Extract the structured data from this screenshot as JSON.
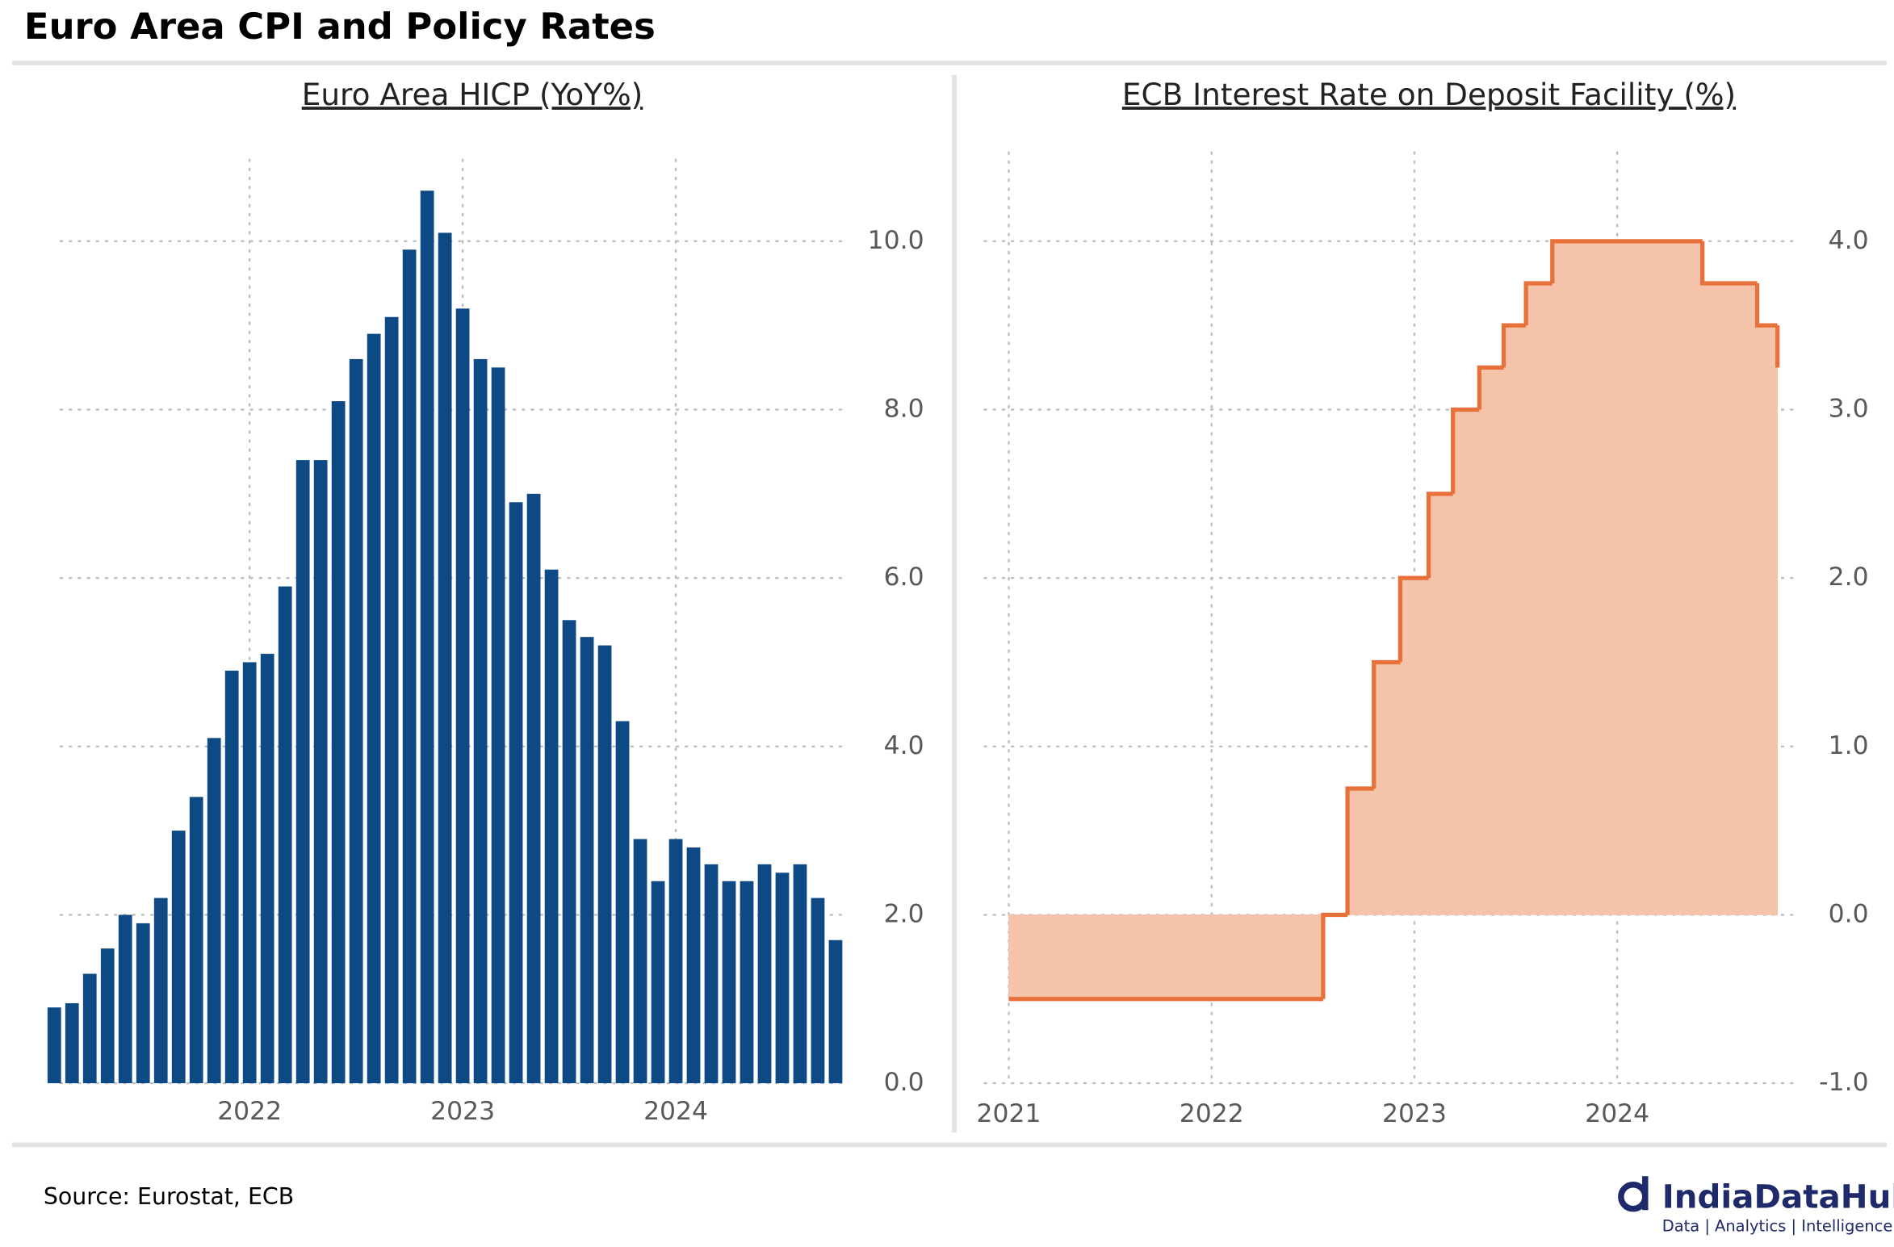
{
  "title": "Euro Area CPI and Policy Rates",
  "source": "Source: Eurostat, ECB",
  "logo": {
    "name": "IndiaDataHub",
    "tagline": "Data | Analytics | Intelligence"
  },
  "chart_data": [
    {
      "type": "bar",
      "title": "Euro Area HICP (YoY%)",
      "color": "#0d4a85",
      "categories": [
        null,
        null,
        null,
        null,
        null,
        null,
        null,
        null,
        null,
        null,
        null,
        "2022",
        null,
        null,
        null,
        null,
        null,
        null,
        null,
        null,
        null,
        null,
        null,
        "2023",
        null,
        null,
        null,
        null,
        null,
        null,
        null,
        null,
        null,
        null,
        null,
        "2024",
        null,
        null,
        null,
        null,
        null,
        null,
        null,
        null,
        null
      ],
      "values": [
        0.9,
        0.95,
        1.3,
        1.6,
        2.0,
        1.9,
        2.2,
        3.0,
        3.4,
        4.1,
        4.9,
        5.0,
        5.1,
        5.9,
        7.4,
        7.4,
        8.1,
        8.6,
        8.9,
        9.1,
        9.9,
        10.6,
        10.1,
        9.2,
        8.6,
        8.5,
        6.9,
        7.0,
        6.1,
        5.5,
        5.3,
        5.2,
        4.3,
        2.9,
        2.4,
        2.9,
        2.8,
        2.6,
        2.4,
        2.4,
        2.6,
        2.5,
        2.6,
        2.2,
        1.7
      ],
      "ylim": [
        0,
        11
      ],
      "yticks": [
        {
          "value": 0,
          "label": "0.0"
        },
        {
          "value": 2,
          "label": "2.0"
        },
        {
          "value": 4,
          "label": "4.0"
        },
        {
          "value": 6,
          "label": "6.0"
        },
        {
          "value": 8,
          "label": "8.0"
        },
        {
          "value": 10,
          "label": "10.0"
        }
      ],
      "grid": true
    },
    {
      "type": "step",
      "title": "ECB Interest Rate on Deposit Facility (%)",
      "color": "#e8703a",
      "fill": "#f4c3aa",
      "x": [
        2021.0,
        2022.55,
        2022.67,
        2022.8,
        2022.93,
        2023.07,
        2023.19,
        2023.32,
        2023.44,
        2023.55,
        2023.68,
        2024.42,
        2024.69,
        2024.79
      ],
      "values": [
        -0.5,
        0,
        0.75,
        1.5,
        2.0,
        2.5,
        3.0,
        3.25,
        3.5,
        3.75,
        4.0,
        3.75,
        3.5,
        3.25
      ],
      "xlim": [
        2020.88,
        2024.9
      ],
      "xticks": [
        2021,
        2022,
        2023,
        2024
      ],
      "ylim": [
        -1,
        4.5
      ],
      "yticks": [
        {
          "value": -1,
          "label": "-1.0"
        },
        {
          "value": 0,
          "label": "0.0"
        },
        {
          "value": 1,
          "label": "1.0"
        },
        {
          "value": 2,
          "label": "2.0"
        },
        {
          "value": 3,
          "label": "3.0"
        },
        {
          "value": 4,
          "label": "4.0"
        }
      ],
      "grid": true
    }
  ]
}
